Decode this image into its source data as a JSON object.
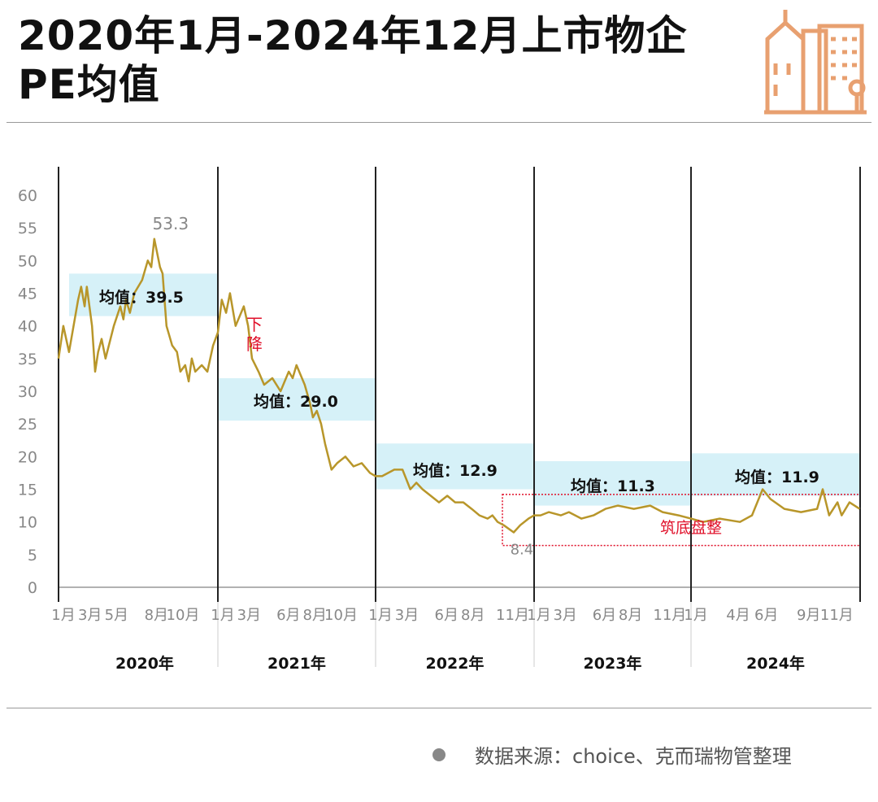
{
  "title": "2020年1月-2024年12月上市物企PE均值",
  "source": "数据来源：choice、克而瑞物管整理",
  "icon": "building-icon",
  "colors": {
    "line": "#b8962a",
    "band": "#d6f1f8",
    "annotation_red": "#e0102a",
    "icon": "#e8a070"
  },
  "chart_data": {
    "type": "line",
    "title": "",
    "xlabel": "",
    "ylabel": "",
    "ylim": [
      0,
      60
    ],
    "yticks": [
      0,
      5,
      10,
      15,
      20,
      25,
      30,
      35,
      40,
      45,
      50,
      55,
      60
    ],
    "grid": false,
    "years": [
      {
        "label": "2020年",
        "year": 2020,
        "months": [
          1,
          3,
          5,
          8,
          10
        ]
      },
      {
        "label": "2021年",
        "year": 2021,
        "months": [
          1,
          3,
          6,
          8,
          10
        ]
      },
      {
        "label": "2022年",
        "year": 2022,
        "months": [
          1,
          3,
          6,
          8,
          11
        ]
      },
      {
        "label": "2023年",
        "year": 2023,
        "months": [
          1,
          3,
          6,
          8,
          11
        ]
      },
      {
        "label": "2024年",
        "year": 2024,
        "months": [
          1,
          4,
          6,
          9,
          11
        ]
      }
    ],
    "month_suffix": "月",
    "means": [
      {
        "year": 2020,
        "label": "均值：39.5",
        "value": 39.5
      },
      {
        "year": 2021,
        "label": "均值：29.0",
        "value": 29.0
      },
      {
        "year": 2022,
        "label": "均值：12.9",
        "value": 12.9
      },
      {
        "year": 2023,
        "label": "均值：11.3",
        "value": 11.3
      },
      {
        "year": 2024,
        "label": "均值：11.9",
        "value": 11.9
      }
    ],
    "annotations": {
      "max": {
        "label": "53.3",
        "date": "2020-08-08",
        "value": 53.3
      },
      "min": {
        "label": "8.4",
        "date": "2022-11-15",
        "value": 8.4
      },
      "decline": "下降",
      "bottoming": "筑底盘整"
    },
    "series": [
      {
        "points": [
          [
            "2020-01-01",
            35
          ],
          [
            "2020-01-12",
            40
          ],
          [
            "2020-01-25",
            36
          ],
          [
            "2020-02-15",
            44
          ],
          [
            "2020-02-22",
            46
          ],
          [
            "2020-03-01",
            43
          ],
          [
            "2020-03-06",
            46
          ],
          [
            "2020-03-18",
            40
          ],
          [
            "2020-03-25",
            33
          ],
          [
            "2020-04-01",
            36
          ],
          [
            "2020-04-09",
            38
          ],
          [
            "2020-04-18",
            35
          ],
          [
            "2020-05-07",
            40
          ],
          [
            "2020-05-22",
            43
          ],
          [
            "2020-05-29",
            41
          ],
          [
            "2020-06-04",
            44
          ],
          [
            "2020-06-13",
            42
          ],
          [
            "2020-06-23",
            45
          ],
          [
            "2020-07-11",
            47
          ],
          [
            "2020-07-24",
            50
          ],
          [
            "2020-08-01",
            49
          ],
          [
            "2020-08-08",
            53.3
          ],
          [
            "2020-08-21",
            49
          ],
          [
            "2020-08-27",
            48
          ],
          [
            "2020-09-05",
            40
          ],
          [
            "2020-09-18",
            37
          ],
          [
            "2020-09-29",
            36
          ],
          [
            "2020-10-07",
            33
          ],
          [
            "2020-10-18",
            34
          ],
          [
            "2020-10-26",
            31.5
          ],
          [
            "2020-11-02",
            35
          ],
          [
            "2020-11-10",
            33
          ],
          [
            "2020-11-25",
            34
          ],
          [
            "2020-12-08",
            33
          ],
          [
            "2020-12-21",
            37
          ],
          [
            "2021-01-01",
            39
          ],
          [
            "2021-01-10",
            44
          ],
          [
            "2021-01-20",
            42
          ],
          [
            "2021-01-29",
            45
          ],
          [
            "2021-02-11",
            40
          ],
          [
            "2021-03-02",
            43
          ],
          [
            "2021-03-12",
            40
          ],
          [
            "2021-03-21",
            35
          ],
          [
            "2021-04-05",
            33
          ],
          [
            "2021-04-18",
            31
          ],
          [
            "2021-05-07",
            32
          ],
          [
            "2021-05-26",
            30
          ],
          [
            "2021-06-14",
            33
          ],
          [
            "2021-06-23",
            32
          ],
          [
            "2021-07-02",
            34
          ],
          [
            "2021-07-21",
            31
          ],
          [
            "2021-08-03",
            28
          ],
          [
            "2021-08-09",
            26
          ],
          [
            "2021-08-18",
            27
          ],
          [
            "2021-08-28",
            25
          ],
          [
            "2021-09-06",
            22
          ],
          [
            "2021-09-21",
            18
          ],
          [
            "2021-10-04",
            19
          ],
          [
            "2021-10-23",
            20
          ],
          [
            "2021-11-11",
            18.5
          ],
          [
            "2021-11-30",
            19
          ],
          [
            "2021-12-19",
            17.5
          ],
          [
            "2022-01-01",
            17
          ],
          [
            "2022-01-16",
            17
          ],
          [
            "2022-02-13",
            18
          ],
          [
            "2022-03-04",
            18
          ],
          [
            "2022-03-22",
            15
          ],
          [
            "2022-04-05",
            16
          ],
          [
            "2022-04-19",
            15
          ],
          [
            "2022-05-08",
            14
          ],
          [
            "2022-05-27",
            13
          ],
          [
            "2022-06-15",
            14
          ],
          [
            "2022-07-03",
            13
          ],
          [
            "2022-07-22",
            13
          ],
          [
            "2022-08-10",
            12
          ],
          [
            "2022-08-28",
            11
          ],
          [
            "2022-09-16",
            10.5
          ],
          [
            "2022-09-27",
            11
          ],
          [
            "2022-10-09",
            10
          ],
          [
            "2022-10-23",
            9.5
          ],
          [
            "2022-11-15",
            8.4
          ],
          [
            "2022-11-30",
            9.5
          ],
          [
            "2022-12-19",
            10.5
          ],
          [
            "2023-01-01",
            11
          ],
          [
            "2023-01-16",
            11
          ],
          [
            "2023-02-04",
            11.5
          ],
          [
            "2023-03-04",
            11
          ],
          [
            "2023-03-23",
            11.5
          ],
          [
            "2023-04-21",
            10.5
          ],
          [
            "2023-05-19",
            11
          ],
          [
            "2023-06-16",
            12
          ],
          [
            "2023-07-15",
            12.5
          ],
          [
            "2023-08-21",
            12
          ],
          [
            "2023-09-28",
            12.5
          ],
          [
            "2023-10-27",
            11.5
          ],
          [
            "2023-12-03",
            11
          ],
          [
            "2024-01-01",
            10.5
          ],
          [
            "2024-01-27",
            10
          ],
          [
            "2024-03-03",
            10.5
          ],
          [
            "2024-04-16",
            10
          ],
          [
            "2024-05-12",
            11
          ],
          [
            "2024-06-04",
            15
          ],
          [
            "2024-06-21",
            13.5
          ],
          [
            "2024-07-21",
            12
          ],
          [
            "2024-08-26",
            11.5
          ],
          [
            "2024-09-30",
            12
          ],
          [
            "2024-10-12",
            15
          ],
          [
            "2024-10-26",
            11
          ],
          [
            "2024-11-13",
            13
          ],
          [
            "2024-11-22",
            11
          ],
          [
            "2024-12-09",
            13
          ],
          [
            "2024-12-31",
            12
          ]
        ]
      }
    ]
  }
}
